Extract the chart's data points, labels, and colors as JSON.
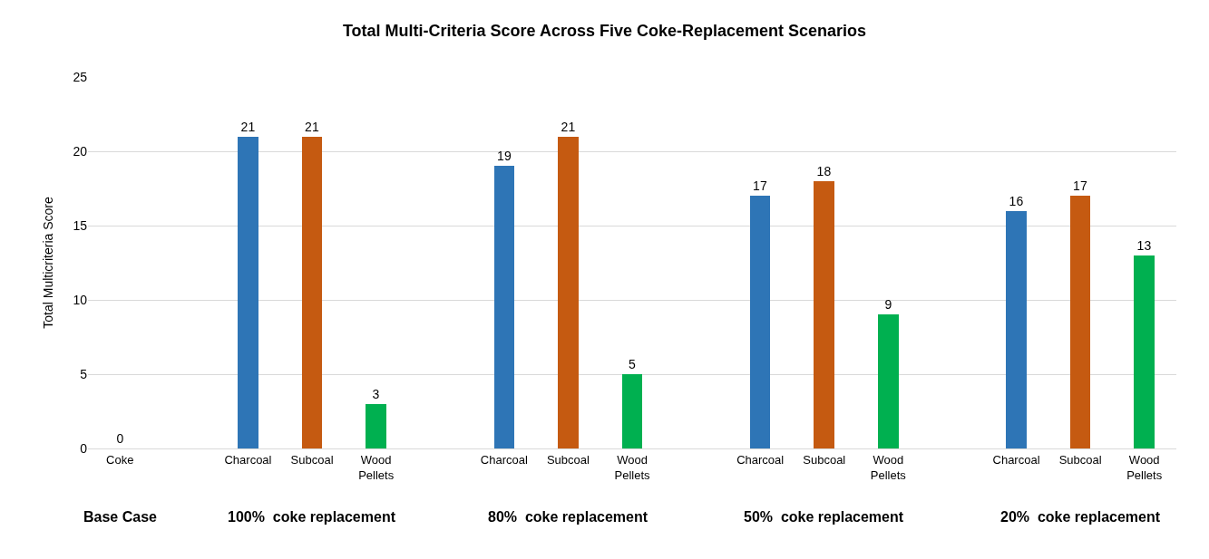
{
  "chart_data": {
    "type": "bar",
    "title": "Total Multi-Criteria Score Across Five Coke-Replacement Scenarios",
    "ylabel": "Total Multicriteria Score",
    "categories": [
      "Coke",
      null,
      "Charcoal",
      "Subcoal",
      "Wood Pellets",
      null,
      "Charcoal",
      "Subcoal",
      "Wood Pellets",
      null,
      "Charcoal",
      "Subcoal",
      "Wood Pellets",
      null,
      "Charcoal",
      "Subcoal",
      "Wood Pellets"
    ],
    "values": [
      0,
      null,
      21,
      21,
      3,
      null,
      19,
      21,
      5,
      null,
      17,
      18,
      9,
      null,
      16,
      17,
      13
    ],
    "colors": [
      "#2e75b6",
      null,
      "#2e75b6",
      "#c55a11",
      "#00b050",
      null,
      "#2e75b6",
      "#c55a11",
      "#00b050",
      null,
      "#2e75b6",
      "#c55a11",
      "#00b050",
      null,
      "#2e75b6",
      "#c55a11",
      "#00b050"
    ],
    "ylim": [
      0,
      25
    ],
    "yticks": [
      0,
      5,
      10,
      15,
      20,
      25
    ],
    "grid": "y",
    "data_labels": true,
    "legend": false,
    "annotations": [
      "Base Case",
      "100%  coke replacement",
      "80%  coke replacement",
      "50%  coke replacement",
      "20%  coke replacement"
    ]
  }
}
